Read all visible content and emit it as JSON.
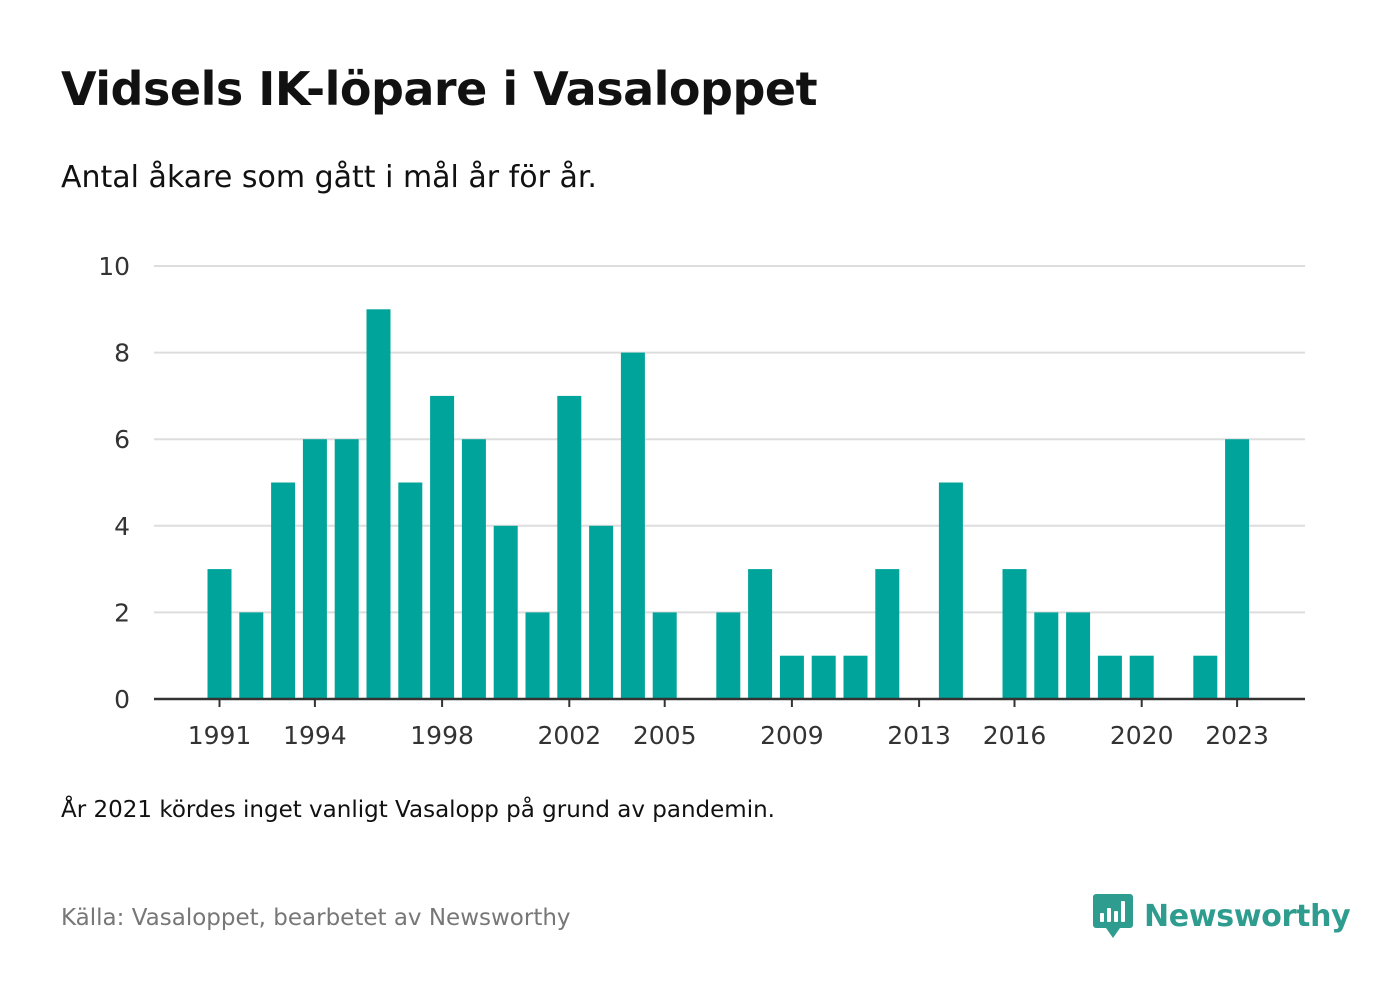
{
  "title": "Vidsels IK-löpare i Vasaloppet",
  "subtitle": "Antal åkare som gått i mål år för år.",
  "note": "År 2021 kördes inget vanligt Vasalopp på grund av pandemin.",
  "source": "Källa: Vasaloppet, bearbetet av Newsworthy",
  "brand": {
    "name": "Newsworthy",
    "icon": "newsworthy-logo-icon",
    "color": "#2e9c8e"
  },
  "colors": {
    "bar": "#00a49a",
    "grid": "#dddddd",
    "axis": "#333333"
  },
  "chart_data": {
    "type": "bar",
    "title": "Vidsels IK-löpare i Vasaloppet",
    "subtitle": "Antal åkare som gått i mål år för år.",
    "xlabel": "",
    "ylabel": "",
    "ylim": [
      0,
      10
    ],
    "yticks": [
      0,
      2,
      4,
      6,
      8,
      10
    ],
    "xtick_labels": [
      "1991",
      "1994",
      "1998",
      "2002",
      "2005",
      "2009",
      "2013",
      "2016",
      "2020",
      "2023"
    ],
    "grid": true,
    "categories": [
      1991,
      1992,
      1993,
      1994,
      1995,
      1996,
      1997,
      1998,
      1999,
      2000,
      2001,
      2002,
      2003,
      2004,
      2005,
      2006,
      2007,
      2008,
      2009,
      2010,
      2011,
      2012,
      2013,
      2014,
      2015,
      2016,
      2017,
      2018,
      2019,
      2020,
      2021,
      2022,
      2023
    ],
    "values": [
      3,
      2,
      5,
      6,
      6,
      9,
      5,
      7,
      6,
      4,
      2,
      7,
      4,
      8,
      2,
      0,
      2,
      3,
      1,
      1,
      1,
      3,
      0,
      5,
      0,
      3,
      2,
      2,
      1,
      1,
      0,
      1,
      6
    ]
  }
}
